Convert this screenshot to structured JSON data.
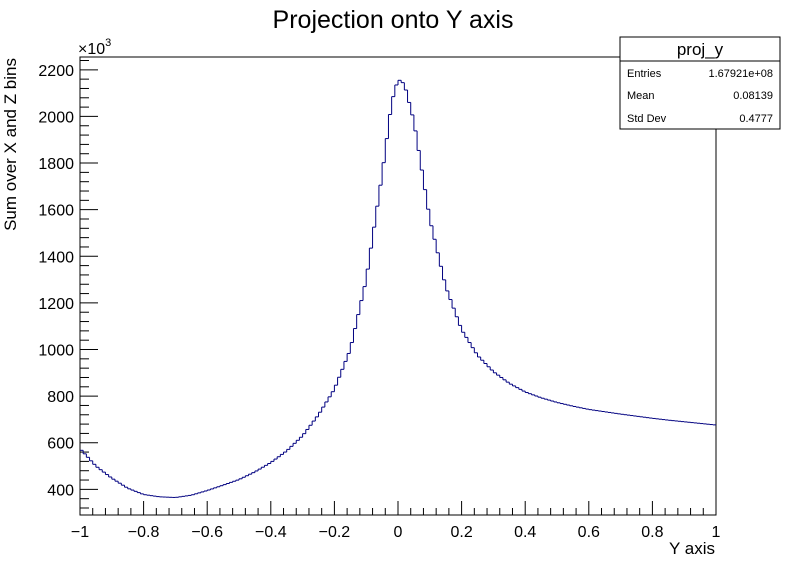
{
  "chart_data": {
    "type": "histogram-step",
    "title": "Projection onto Y axis",
    "xlabel": "Y axis",
    "ylabel": "Sum over X and Z bins",
    "y_multiplier_label": "×10",
    "y_multiplier_exponent": "3",
    "xlim": [
      -1,
      1
    ],
    "ylim": [
      290,
      2255
    ],
    "x_ticks": [
      -1,
      -0.8,
      -0.6,
      -0.4,
      -0.2,
      0,
      0.2,
      0.4,
      0.6,
      0.8,
      1
    ],
    "x_tick_labels": [
      "−1",
      "−0.8",
      "−0.6",
      "−0.4",
      "−0.2",
      "0",
      "0.2",
      "0.4",
      "0.6",
      "0.8",
      "1"
    ],
    "y_ticks": [
      400,
      600,
      800,
      1000,
      1200,
      1400,
      1600,
      1800,
      2000,
      2200
    ],
    "y_tick_labels": [
      "400",
      "600",
      "800",
      "1000",
      "1200",
      "1400",
      "1600",
      "1800",
      "2000",
      "2200"
    ],
    "grid": false,
    "line_color": "#000080",
    "bins": 200,
    "anchors": [
      [
        -1.0,
        575
      ],
      [
        -0.95,
        500
      ],
      [
        -0.9,
        448
      ],
      [
        -0.85,
        405
      ],
      [
        -0.8,
        378
      ],
      [
        -0.75,
        368
      ],
      [
        -0.7,
        365
      ],
      [
        -0.65,
        375
      ],
      [
        -0.6,
        395
      ],
      [
        -0.55,
        418
      ],
      [
        -0.5,
        442
      ],
      [
        -0.45,
        475
      ],
      [
        -0.4,
        515
      ],
      [
        -0.35,
        565
      ],
      [
        -0.3,
        630
      ],
      [
        -0.25,
        720
      ],
      [
        -0.2,
        830
      ],
      [
        -0.15,
        1000
      ],
      [
        -0.1,
        1300
      ],
      [
        -0.05,
        1750
      ],
      [
        -0.02,
        2060
      ],
      [
        0.0,
        2160
      ],
      [
        0.02,
        2140
      ],
      [
        0.05,
        1980
      ],
      [
        0.1,
        1560
      ],
      [
        0.15,
        1270
      ],
      [
        0.2,
        1085
      ],
      [
        0.25,
        975
      ],
      [
        0.3,
        905
      ],
      [
        0.35,
        855
      ],
      [
        0.4,
        818
      ],
      [
        0.45,
        793
      ],
      [
        0.5,
        773
      ],
      [
        0.55,
        757
      ],
      [
        0.6,
        743
      ],
      [
        0.65,
        733
      ],
      [
        0.7,
        723
      ],
      [
        0.75,
        714
      ],
      [
        0.8,
        705
      ],
      [
        0.85,
        697
      ],
      [
        0.9,
        690
      ],
      [
        0.95,
        683
      ],
      [
        1.0,
        676
      ]
    ]
  },
  "stats_box": {
    "title": "proj_y",
    "rows": [
      {
        "label": "Entries",
        "value": "1.67921e+08"
      },
      {
        "label": "Mean",
        "value": "0.08139"
      },
      {
        "label": "Std Dev",
        "value": "0.4777"
      }
    ]
  }
}
